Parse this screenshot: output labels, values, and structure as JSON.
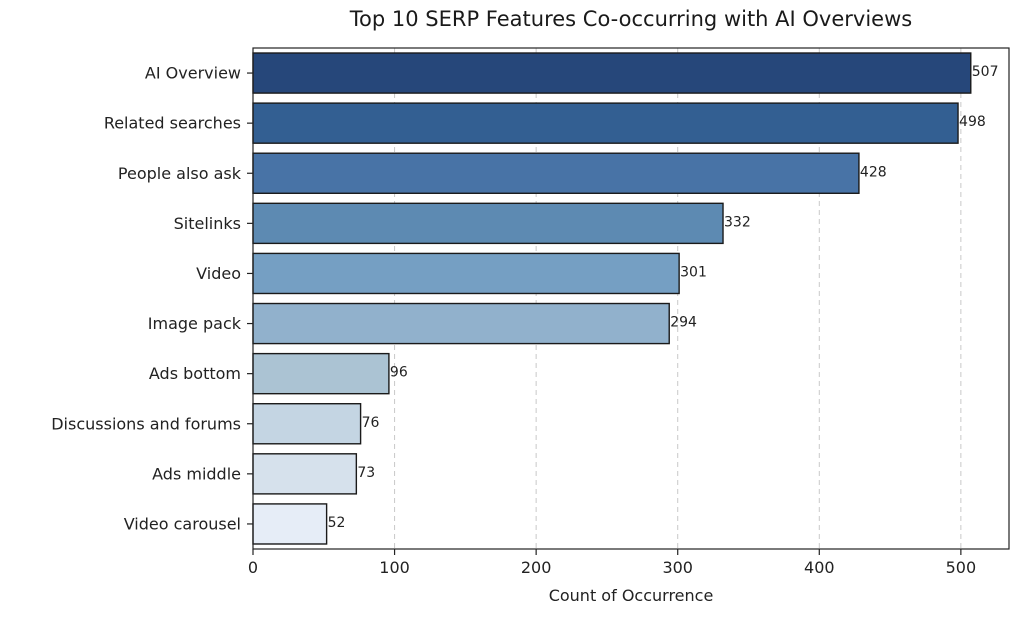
{
  "chart_data": {
    "type": "bar",
    "orientation": "horizontal",
    "title": "Top 10 SERP Features Co-occurring with AI Overviews",
    "xlabel": "Count of Occurrence",
    "ylabel": "",
    "xlim": [
      0,
      534
    ],
    "xticks": [
      0,
      100,
      200,
      300,
      400,
      500
    ],
    "grid": "x-dashed",
    "categories": [
      "AI Overview",
      "Related searches",
      "People also ask",
      "Sitelinks",
      "Video",
      "Image pack",
      "Ads bottom",
      "Discussions and forums",
      "Ads middle",
      "Video carousel"
    ],
    "values": [
      507,
      498,
      428,
      332,
      301,
      294,
      96,
      76,
      73,
      52
    ],
    "value_labels": [
      "507",
      "498",
      "428",
      "332",
      "301",
      "294",
      "96",
      "76",
      "73",
      "52"
    ],
    "colors": [
      "#26477a",
      "#335f92",
      "#4873a6",
      "#5d8ab2",
      "#759fc3",
      "#91b1cc",
      "#abc3d3",
      "#c4d5e3",
      "#d6e1ec",
      "#e6edf7"
    ]
  }
}
